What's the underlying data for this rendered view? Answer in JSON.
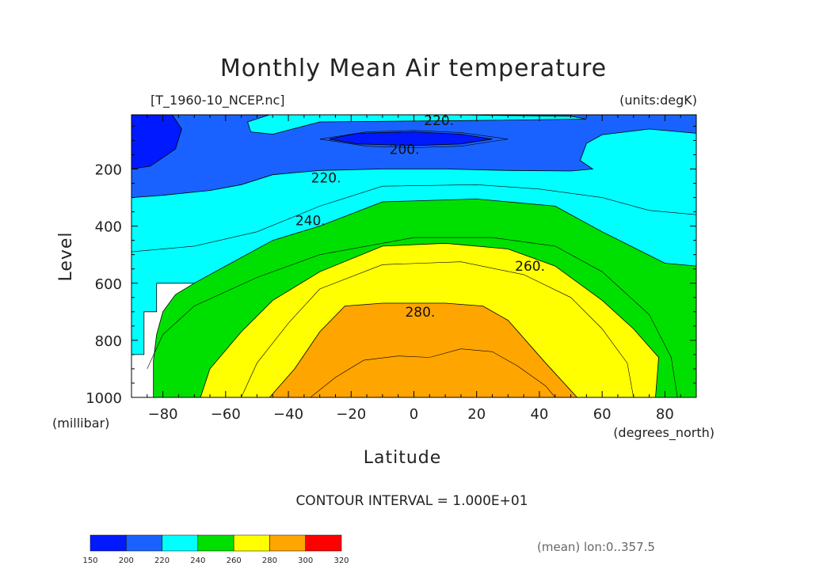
{
  "chart_data": {
    "type": "filled-contour",
    "title": "Monthly Mean Air temperature",
    "source_label": "[T_1960-10_NCEP.nc]",
    "units_label": "(units:degK)",
    "xlabel": "Latitude",
    "x_units": "(degrees_north)",
    "ylabel": "Level",
    "y_units": "(millibar)",
    "xlim": [
      -90,
      90
    ],
    "ylim": [
      1000,
      10
    ],
    "x_ticks": [
      -80,
      -60,
      -40,
      -20,
      0,
      20,
      40,
      60,
      80
    ],
    "x_tick_labels": [
      "−80",
      "−60",
      "−40",
      "−20",
      "0",
      "20",
      "40",
      "60",
      "80"
    ],
    "y_ticks": [
      200,
      400,
      600,
      800,
      1000
    ],
    "y_tick_labels": [
      "200",
      "400",
      "600",
      "800",
      "1000"
    ],
    "contour_interval_text": "CONTOUR INTERVAL = 1.000E+01",
    "contour_labels": [
      {
        "text": "220.",
        "lat": 8,
        "level": 30
      },
      {
        "text": "200.",
        "lat": -3,
        "level": 130
      },
      {
        "text": "220.",
        "lat": -28,
        "level": 230
      },
      {
        "text": "240.",
        "lat": -33,
        "level": 380
      },
      {
        "text": "260.",
        "lat": 37,
        "level": 540
      },
      {
        "text": "280.",
        "lat": 2,
        "level": 700
      }
    ],
    "colorbar": {
      "levels": [
        150,
        200,
        220,
        240,
        260,
        280,
        300,
        320
      ],
      "level_labels": [
        "150",
        "200",
        "220",
        "240",
        "260",
        "280",
        "300",
        "320"
      ],
      "colors": [
        "#0019ff",
        "#1a62ff",
        "#00ffff",
        "#00e000",
        "#ffff00",
        "#ffa500",
        "#ff0000"
      ]
    },
    "footnote": "(mean) lon:0..357.5",
    "regions": [
      {
        "band": "200-220",
        "color": "#1a62ff",
        "points": [
          [
            -90,
            10
          ],
          [
            90,
            10
          ],
          [
            90,
            300
          ],
          [
            -90,
            300
          ]
        ]
      },
      {
        "band": "150-200",
        "color": "#0019ff",
        "points": [
          [
            -90,
            10
          ],
          [
            -77,
            10
          ],
          [
            -74,
            60
          ],
          [
            -76,
            130
          ],
          [
            -84,
            190
          ],
          [
            -90,
            200
          ]
        ]
      },
      {
        "band": "150-200",
        "color": "#0019ff",
        "points": [
          [
            -27,
            95
          ],
          [
            -18,
            75
          ],
          [
            0,
            70
          ],
          [
            15,
            78
          ],
          [
            25,
            95
          ],
          [
            15,
            112
          ],
          [
            0,
            118
          ],
          [
            -18,
            112
          ]
        ]
      },
      {
        "band": "220-240",
        "color": "#00ffff",
        "points": [
          [
            -90,
            300
          ],
          [
            -80,
            292
          ],
          [
            -65,
            275
          ],
          [
            -55,
            255
          ],
          [
            -45,
            220
          ],
          [
            -30,
            205
          ],
          [
            -10,
            200
          ],
          [
            10,
            200
          ],
          [
            30,
            205
          ],
          [
            50,
            207
          ],
          [
            57,
            200
          ],
          [
            53,
            170
          ],
          [
            55,
            110
          ],
          [
            60,
            80
          ],
          [
            75,
            60
          ],
          [
            90,
            75
          ],
          [
            90,
            600
          ],
          [
            -82,
            600
          ],
          [
            -82,
            700
          ],
          [
            -86,
            700
          ],
          [
            -86,
            850
          ],
          [
            -90,
            850
          ]
        ]
      },
      {
        "band": "220-240",
        "color": "#00ffff",
        "points": [
          [
            -46,
            10
          ],
          [
            10,
            10
          ],
          [
            50,
            15
          ],
          [
            55,
            25
          ],
          [
            20,
            30
          ],
          [
            -30,
            35
          ],
          [
            -45,
            78
          ],
          [
            -52,
            70
          ],
          [
            -53,
            35
          ]
        ]
      },
      {
        "band": "240-260",
        "color": "#00e000",
        "points": [
          [
            -83,
            1000
          ],
          [
            -83,
            870
          ],
          [
            -82,
            780
          ],
          [
            -80,
            700
          ],
          [
            -76,
            640
          ],
          [
            -70,
            600
          ],
          [
            -60,
            540
          ],
          [
            -45,
            450
          ],
          [
            -30,
            400
          ],
          [
            -10,
            315
          ],
          [
            20,
            305
          ],
          [
            45,
            330
          ],
          [
            60,
            420
          ],
          [
            80,
            530
          ],
          [
            90,
            540
          ],
          [
            90,
            1000
          ]
        ]
      },
      {
        "band": "260-280",
        "color": "#ffff00",
        "points": [
          [
            -68,
            1000
          ],
          [
            -65,
            900
          ],
          [
            -55,
            770
          ],
          [
            -45,
            660
          ],
          [
            -30,
            560
          ],
          [
            -10,
            470
          ],
          [
            10,
            460
          ],
          [
            30,
            480
          ],
          [
            45,
            540
          ],
          [
            60,
            660
          ],
          [
            70,
            760
          ],
          [
            78,
            860
          ],
          [
            77,
            1000
          ]
        ]
      },
      {
        "band": "280-300",
        "color": "#ffa500",
        "points": [
          [
            -46,
            1000
          ],
          [
            -38,
            900
          ],
          [
            -30,
            770
          ],
          [
            -22,
            680
          ],
          [
            -10,
            670
          ],
          [
            10,
            670
          ],
          [
            22,
            680
          ],
          [
            30,
            730
          ],
          [
            42,
            880
          ],
          [
            52,
            1000
          ]
        ]
      }
    ],
    "contour_lines": [
      {
        "level": 205,
        "points": [
          [
            -30,
            95
          ],
          [
            -15,
            70
          ],
          [
            0,
            65
          ],
          [
            15,
            72
          ],
          [
            30,
            95
          ],
          [
            15,
            120
          ],
          [
            0,
            125
          ],
          [
            -15,
            120
          ],
          [
            -30,
            95
          ]
        ]
      },
      {
        "level": 230,
        "points": [
          [
            -90,
            490
          ],
          [
            -70,
            470
          ],
          [
            -50,
            420
          ],
          [
            -30,
            330
          ],
          [
            -10,
            260
          ],
          [
            20,
            255
          ],
          [
            40,
            270
          ],
          [
            60,
            300
          ],
          [
            75,
            345
          ],
          [
            90,
            360
          ]
        ]
      },
      {
        "level": 250,
        "points": [
          [
            -85,
            900
          ],
          [
            -80,
            780
          ],
          [
            -70,
            680
          ],
          [
            -50,
            580
          ],
          [
            -30,
            500
          ],
          [
            0,
            440
          ],
          [
            25,
            440
          ],
          [
            45,
            470
          ],
          [
            60,
            560
          ],
          [
            75,
            710
          ],
          [
            82,
            860
          ],
          [
            84,
            1000
          ]
        ]
      },
      {
        "level": 270,
        "points": [
          [
            -55,
            1000
          ],
          [
            -50,
            880
          ],
          [
            -40,
            740
          ],
          [
            -30,
            620
          ],
          [
            -10,
            535
          ],
          [
            15,
            525
          ],
          [
            35,
            570
          ],
          [
            50,
            650
          ],
          [
            60,
            760
          ],
          [
            68,
            880
          ],
          [
            70,
            1000
          ]
        ]
      },
      {
        "level": 290,
        "points": [
          [
            -33,
            1000
          ],
          [
            -25,
            930
          ],
          [
            -16,
            870
          ],
          [
            -5,
            855
          ],
          [
            5,
            860
          ],
          [
            15,
            830
          ],
          [
            25,
            840
          ],
          [
            33,
            890
          ],
          [
            42,
            960
          ],
          [
            45,
            1000
          ]
        ]
      }
    ]
  }
}
